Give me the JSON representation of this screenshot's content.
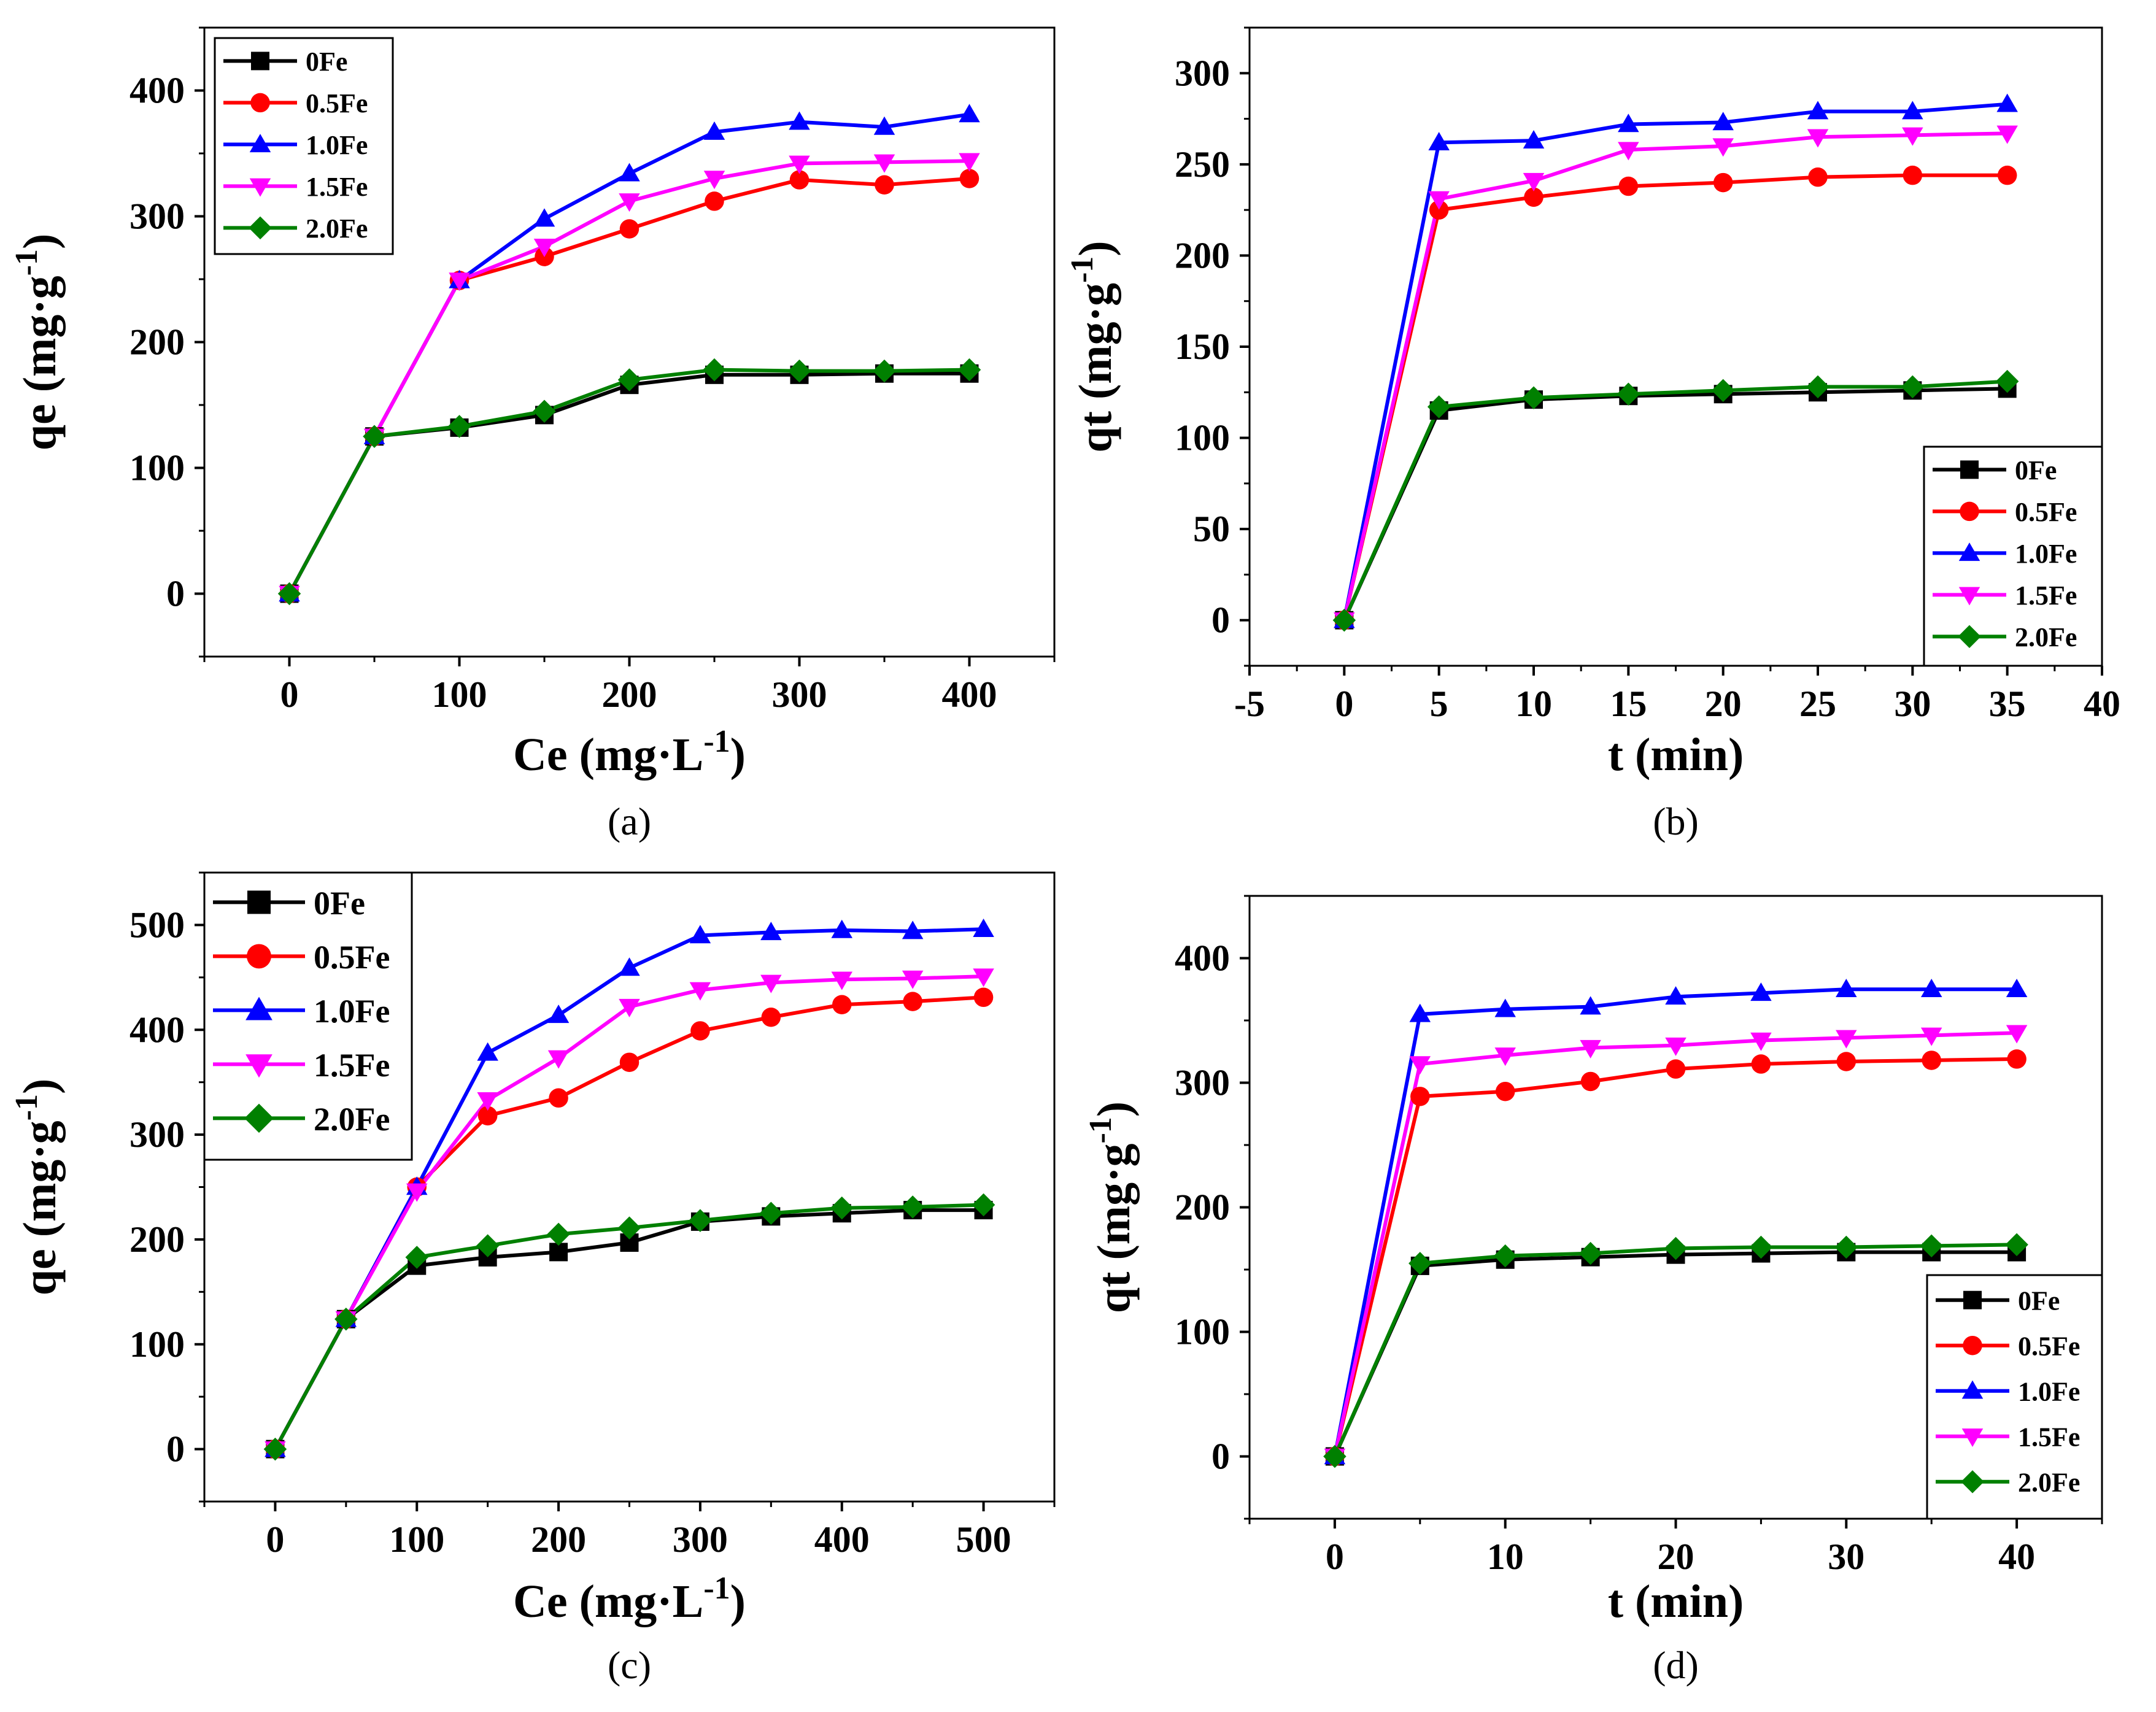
{
  "chart_data": [
    {
      "panel": "(a)",
      "type": "line",
      "xlabel": "Ce (mg·L",
      "xlabel_sup": "-1",
      "xlabel_end": ")",
      "ylabel": "qe (mg·g",
      "ylabel_sup": "-1",
      "ylabel_end": ")",
      "xlim": [
        -50,
        450
      ],
      "ylim": [
        -50,
        450
      ],
      "xticks": [
        0,
        100,
        200,
        300,
        400
      ],
      "yticks": [
        0,
        100,
        200,
        300,
        400
      ],
      "legend_position": "top-left",
      "series": [
        {
          "name": "0Fe",
          "color": "#000000",
          "marker": "square",
          "x": [
            0,
            50,
            100,
            150,
            200,
            250,
            300,
            350,
            400
          ],
          "y": [
            0,
            125,
            132,
            142,
            166,
            174,
            174,
            175,
            175
          ]
        },
        {
          "name": "0.5Fe",
          "color": "#ff0000",
          "marker": "circle",
          "x": [
            0,
            50,
            100,
            150,
            200,
            250,
            300,
            350,
            400
          ],
          "y": [
            0,
            125,
            249,
            268,
            290,
            312,
            329,
            325,
            330
          ]
        },
        {
          "name": "1.0Fe",
          "color": "#0000ff",
          "marker": "triangle-up",
          "x": [
            0,
            50,
            100,
            150,
            200,
            250,
            300,
            350,
            400
          ],
          "y": [
            0,
            125,
            249,
            298,
            334,
            367,
            375,
            371,
            381
          ]
        },
        {
          "name": "1.5Fe",
          "color": "#ff00ff",
          "marker": "triangle-down",
          "x": [
            0,
            50,
            100,
            150,
            200,
            250,
            300,
            350,
            400
          ],
          "y": [
            0,
            125,
            249,
            276,
            312,
            330,
            342,
            343,
            344
          ]
        },
        {
          "name": "2.0Fe",
          "color": "#008000",
          "marker": "diamond",
          "x": [
            0,
            50,
            100,
            150,
            200,
            250,
            300,
            350,
            400
          ],
          "y": [
            0,
            125,
            133,
            145,
            170,
            178,
            177,
            177,
            178
          ]
        }
      ]
    },
    {
      "panel": "(b)",
      "type": "line",
      "xlabel": "t (min)",
      "xlabel_sup": "",
      "xlabel_end": "",
      "ylabel": "qt (mg·g",
      "ylabel_sup": "-1",
      "ylabel_end": ")",
      "xlim": [
        -5,
        40
      ],
      "ylim": [
        -25,
        325
      ],
      "xticks": [
        -5,
        0,
        5,
        10,
        15,
        20,
        25,
        30,
        35,
        40
      ],
      "yticks": [
        0,
        50,
        100,
        150,
        200,
        250,
        300
      ],
      "legend_position": "bottom-right",
      "series": [
        {
          "name": "0Fe",
          "color": "#000000",
          "marker": "square",
          "x": [
            0,
            5,
            10,
            15,
            20,
            25,
            30,
            35
          ],
          "y": [
            0,
            115,
            121,
            123,
            124,
            125,
            126,
            127
          ]
        },
        {
          "name": "0.5Fe",
          "color": "#ff0000",
          "marker": "circle",
          "x": [
            0,
            5,
            10,
            15,
            20,
            25,
            30,
            35
          ],
          "y": [
            0,
            225,
            232,
            238,
            240,
            243,
            244,
            244
          ]
        },
        {
          "name": "1.0Fe",
          "color": "#0000ff",
          "marker": "triangle-up",
          "x": [
            0,
            5,
            10,
            15,
            20,
            25,
            30,
            35
          ],
          "y": [
            0,
            262,
            263,
            272,
            273,
            279,
            279,
            283
          ]
        },
        {
          "name": "1.5Fe",
          "color": "#ff00ff",
          "marker": "triangle-down",
          "x": [
            0,
            5,
            10,
            15,
            20,
            25,
            30,
            35
          ],
          "y": [
            0,
            231,
            241,
            258,
            260,
            265,
            266,
            267
          ]
        },
        {
          "name": "2.0Fe",
          "color": "#008000",
          "marker": "diamond",
          "x": [
            0,
            5,
            10,
            15,
            20,
            25,
            30,
            35
          ],
          "y": [
            0,
            117,
            122,
            124,
            126,
            128,
            128,
            131
          ]
        }
      ]
    },
    {
      "panel": "(c)",
      "type": "line",
      "xlabel": "Ce (mg·L",
      "xlabel_sup": "-1",
      "xlabel_end": ")",
      "ylabel": "qe (mg·g",
      "ylabel_sup": "-1",
      "ylabel_end": ")",
      "xlim": [
        -50,
        550
      ],
      "ylim": [
        -50,
        550
      ],
      "xticks": [
        0,
        100,
        200,
        300,
        400,
        500
      ],
      "yticks": [
        0,
        100,
        200,
        300,
        400,
        500
      ],
      "legend_position": "top-left",
      "series": [
        {
          "name": "0Fe",
          "color": "#000000",
          "marker": "square",
          "x": [
            0,
            50,
            100,
            150,
            200,
            250,
            300,
            350,
            400,
            450,
            500
          ],
          "y": [
            0,
            124,
            175,
            183,
            188,
            197,
            217,
            222,
            225,
            228,
            228
          ]
        },
        {
          "name": "0.5Fe",
          "color": "#ff0000",
          "marker": "circle",
          "x": [
            0,
            50,
            100,
            150,
            200,
            250,
            300,
            350,
            400,
            450,
            500
          ],
          "y": [
            0,
            124,
            250,
            318,
            335,
            369,
            399,
            412,
            424,
            427,
            431
          ]
        },
        {
          "name": "1.0Fe",
          "color": "#0000ff",
          "marker": "triangle-up",
          "x": [
            0,
            50,
            100,
            150,
            200,
            250,
            300,
            350,
            400,
            450,
            500
          ],
          "y": [
            0,
            124,
            250,
            378,
            414,
            459,
            490,
            493,
            495,
            494,
            496
          ]
        },
        {
          "name": "1.5Fe",
          "color": "#ff00ff",
          "marker": "triangle-down",
          "x": [
            0,
            50,
            100,
            150,
            200,
            250,
            300,
            350,
            400,
            450,
            500
          ],
          "y": [
            0,
            124,
            246,
            333,
            373,
            422,
            438,
            445,
            448,
            449,
            451
          ]
        },
        {
          "name": "2.0Fe",
          "color": "#008000",
          "marker": "diamond",
          "x": [
            0,
            50,
            100,
            150,
            200,
            250,
            300,
            350,
            400,
            450,
            500
          ],
          "y": [
            0,
            124,
            183,
            194,
            205,
            211,
            218,
            225,
            230,
            231,
            233
          ]
        }
      ]
    },
    {
      "panel": "(d)",
      "type": "line",
      "xlabel": "t (min)",
      "xlabel_sup": "",
      "xlabel_end": "",
      "ylabel": "qt (mg·g",
      "ylabel_sup": "-1",
      "ylabel_end": ")",
      "xlim": [
        -5,
        45
      ],
      "ylim": [
        -50,
        450
      ],
      "xticks": [
        0,
        10,
        20,
        30,
        40
      ],
      "yticks": [
        0,
        100,
        200,
        300,
        400
      ],
      "legend_position": "bottom-right",
      "series": [
        {
          "name": "0Fe",
          "color": "#000000",
          "marker": "square",
          "x": [
            0,
            5,
            10,
            15,
            20,
            25,
            30,
            35,
            40
          ],
          "y": [
            0,
            153,
            158,
            160,
            162,
            163,
            164,
            164,
            164
          ]
        },
        {
          "name": "0.5Fe",
          "color": "#ff0000",
          "marker": "circle",
          "x": [
            0,
            5,
            10,
            15,
            20,
            25,
            30,
            35,
            40
          ],
          "y": [
            0,
            289,
            293,
            301,
            311,
            315,
            317,
            318,
            319
          ]
        },
        {
          "name": "1.0Fe",
          "color": "#0000ff",
          "marker": "triangle-up",
          "x": [
            0,
            5,
            10,
            15,
            20,
            25,
            30,
            35,
            40
          ],
          "y": [
            0,
            355,
            359,
            361,
            369,
            372,
            375,
            375,
            375
          ]
        },
        {
          "name": "1.5Fe",
          "color": "#ff00ff",
          "marker": "triangle-down",
          "x": [
            0,
            5,
            10,
            15,
            20,
            25,
            30,
            35,
            40
          ],
          "y": [
            0,
            315,
            322,
            328,
            330,
            334,
            336,
            338,
            340
          ]
        },
        {
          "name": "2.0Fe",
          "color": "#008000",
          "marker": "diamond",
          "x": [
            0,
            5,
            10,
            15,
            20,
            25,
            30,
            35,
            40
          ],
          "y": [
            0,
            155,
            161,
            163,
            167,
            168,
            168,
            169,
            170
          ]
        }
      ]
    }
  ]
}
